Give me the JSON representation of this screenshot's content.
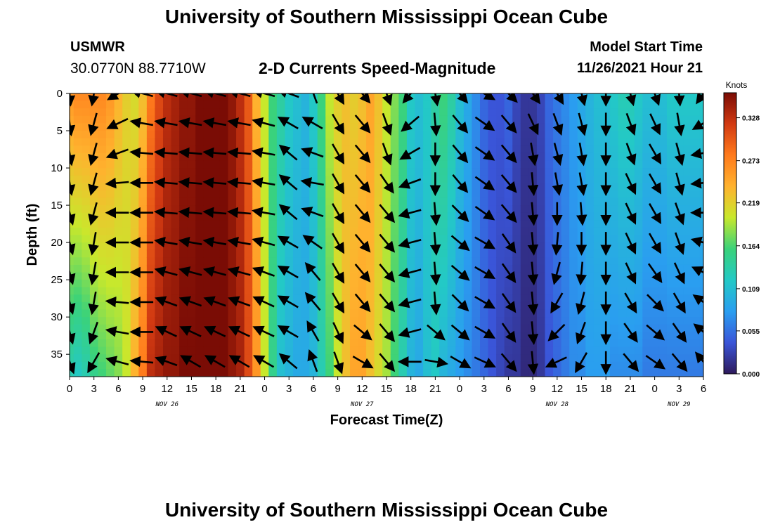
{
  "header": {
    "title": "University of Southern Mississippi Ocean Cube",
    "station_id": "USMWR",
    "coordinates": "30.0770N  88.7710W",
    "plot_title": "2-D Currents Speed-Magnitude",
    "model_start_label": "Model Start Time",
    "model_start_value": "11/26/2021 Hour 21"
  },
  "footer": {
    "title": "University of Southern Mississippi Ocean Cube"
  },
  "colors": {
    "colormap": [
      "#2e1a5c",
      "#3a55d8",
      "#2a9ef0",
      "#23c9c6",
      "#3ad27a",
      "#c8e82c",
      "#ffb22e",
      "#ff7a1c",
      "#d23a12",
      "#7a0c05"
    ],
    "arrow": "#000000"
  },
  "chart_data": {
    "type": "heatmap",
    "title": "2-D Currents Speed-Magnitude",
    "xlabel": "Forecast Time(Z)",
    "ylabel": "Depth (ft)",
    "xlim": [
      0,
      78
    ],
    "ylim": [
      0,
      38
    ],
    "y_ticks": [
      0,
      5,
      10,
      15,
      20,
      25,
      30,
      35
    ],
    "x_tick_hours": [
      0,
      3,
      6,
      9,
      12,
      15,
      18,
      21,
      24,
      27,
      30,
      33,
      36,
      39,
      42,
      45,
      48,
      51,
      54,
      57,
      60,
      63,
      66,
      69,
      72,
      75,
      78
    ],
    "x_tick_labels": [
      "0",
      "3",
      "6",
      "9",
      "12",
      "15",
      "18",
      "21",
      "0",
      "3",
      "6",
      "9",
      "12",
      "15",
      "18",
      "21",
      "0",
      "3",
      "6",
      "9",
      "12",
      "15",
      "18",
      "21",
      "0",
      "3",
      "6"
    ],
    "date_labels": [
      {
        "hour": 12,
        "label": "NOV 26"
      },
      {
        "hour": 36,
        "label": "NOV 27"
      },
      {
        "hour": 60,
        "label": "NOV 28"
      },
      {
        "hour": 75,
        "label": "NOV 29"
      }
    ],
    "colorbar": {
      "label": "Knots",
      "min": 0.0,
      "max": 0.36,
      "ticks": [
        0.0,
        0.055,
        0.109,
        0.164,
        0.219,
        0.273,
        0.328
      ],
      "tick_labels": [
        "0.000",
        "0.055",
        "0.109",
        "0.164",
        "0.219",
        "0.273",
        "0.328"
      ]
    },
    "speed_profile": {
      "hours": [
        0,
        1,
        2,
        3,
        4,
        5,
        6,
        7,
        8,
        9,
        10,
        11,
        12,
        13,
        14,
        15,
        16,
        17,
        18,
        19,
        20,
        21,
        22,
        23,
        24,
        25,
        26,
        27,
        28,
        29,
        30,
        31,
        32,
        33,
        34,
        35,
        36,
        37,
        38,
        39,
        40,
        41,
        42,
        43,
        44,
        45,
        46,
        47,
        48,
        49,
        50,
        51,
        52,
        53,
        54,
        55,
        56,
        57,
        58,
        59,
        60,
        61,
        62,
        63,
        64,
        65,
        66,
        67,
        68,
        69,
        70,
        71,
        72,
        73,
        74,
        75,
        76,
        77,
        78
      ],
      "surface": [
        0.26,
        0.27,
        0.27,
        0.27,
        0.27,
        0.26,
        0.24,
        0.22,
        0.21,
        0.23,
        0.28,
        0.31,
        0.33,
        0.34,
        0.35,
        0.35,
        0.36,
        0.36,
        0.36,
        0.36,
        0.35,
        0.33,
        0.3,
        0.24,
        0.2,
        0.16,
        0.14,
        0.12,
        0.11,
        0.1,
        0.12,
        0.16,
        0.2,
        0.22,
        0.23,
        0.22,
        0.23,
        0.25,
        0.23,
        0.2,
        0.18,
        0.16,
        0.12,
        0.11,
        0.12,
        0.14,
        0.16,
        0.14,
        0.11,
        0.09,
        0.07,
        0.05,
        0.04,
        0.04,
        0.05,
        0.03,
        0.02,
        0.02,
        0.03,
        0.05,
        0.06,
        0.07,
        0.08,
        0.09,
        0.1,
        0.11,
        0.11,
        0.12,
        0.13,
        0.13,
        0.12,
        0.11,
        0.11,
        0.11,
        0.12,
        0.12,
        0.12,
        0.12,
        0.12
      ],
      "bottom": [
        0.13,
        0.12,
        0.13,
        0.15,
        0.16,
        0.17,
        0.18,
        0.2,
        0.24,
        0.28,
        0.33,
        0.34,
        0.35,
        0.35,
        0.36,
        0.36,
        0.36,
        0.36,
        0.36,
        0.36,
        0.35,
        0.34,
        0.31,
        0.26,
        0.2,
        0.15,
        0.11,
        0.1,
        0.09,
        0.09,
        0.1,
        0.13,
        0.16,
        0.2,
        0.23,
        0.25,
        0.25,
        0.23,
        0.21,
        0.19,
        0.16,
        0.13,
        0.1,
        0.09,
        0.11,
        0.12,
        0.1,
        0.09,
        0.08,
        0.07,
        0.06,
        0.05,
        0.04,
        0.03,
        0.02,
        0.02,
        0.01,
        0.01,
        0.02,
        0.04,
        0.05,
        0.06,
        0.07,
        0.07,
        0.08,
        0.08,
        0.08,
        0.07,
        0.07,
        0.07,
        0.07,
        0.06,
        0.06,
        0.06,
        0.06,
        0.06,
        0.06,
        0.06,
        0.06
      ]
    },
    "vector_field": {
      "hours": [
        0,
        3,
        6,
        9,
        12,
        15,
        18,
        21,
        24,
        27,
        30,
        33,
        36,
        39,
        42,
        45,
        48,
        51,
        54,
        57,
        60,
        63,
        66,
        69,
        72,
        75,
        78
      ],
      "depths": [
        0,
        4,
        8,
        12,
        16,
        20,
        24,
        28,
        32,
        36
      ],
      "direction_deg": [
        [
          175,
          190,
          240,
          285,
          285,
          285,
          285,
          285,
          285,
          290,
          340,
          150,
          140,
          160,
          220,
          170,
          140,
          120,
          135,
          145,
          150,
          165,
          180,
          165,
          160,
          175,
          215
        ],
        [
          172,
          195,
          245,
          280,
          280,
          280,
          280,
          280,
          285,
          300,
          300,
          150,
          140,
          160,
          230,
          175,
          140,
          125,
          140,
          155,
          160,
          165,
          180,
          160,
          155,
          170,
          240
        ],
        [
          170,
          195,
          250,
          275,
          275,
          275,
          275,
          275,
          280,
          310,
          290,
          150,
          140,
          160,
          240,
          180,
          140,
          125,
          140,
          170,
          165,
          170,
          180,
          160,
          150,
          165,
          260
        ],
        [
          170,
          195,
          265,
          270,
          275,
          275,
          275,
          275,
          280,
          310,
          280,
          150,
          140,
          145,
          250,
          180,
          140,
          125,
          140,
          175,
          170,
          170,
          180,
          155,
          150,
          165,
          265
        ],
        [
          165,
          195,
          270,
          270,
          275,
          275,
          275,
          275,
          280,
          310,
          290,
          150,
          140,
          140,
          255,
          175,
          135,
          125,
          140,
          175,
          180,
          175,
          180,
          155,
          150,
          160,
          270
        ],
        [
          165,
          190,
          270,
          270,
          280,
          280,
          280,
          280,
          285,
          300,
          305,
          150,
          140,
          140,
          255,
          175,
          130,
          120,
          145,
          175,
          185,
          180,
          180,
          155,
          150,
          160,
          285
        ],
        [
          165,
          190,
          270,
          270,
          285,
          285,
          285,
          285,
          290,
          300,
          320,
          150,
          140,
          140,
          255,
          175,
          130,
          120,
          145,
          175,
          195,
          185,
          180,
          155,
          145,
          155,
          295
        ],
        [
          165,
          190,
          275,
          270,
          290,
          290,
          290,
          290,
          295,
          300,
          320,
          150,
          140,
          140,
          255,
          175,
          135,
          120,
          145,
          175,
          210,
          195,
          180,
          150,
          135,
          150,
          305
        ],
        [
          165,
          200,
          280,
          270,
          295,
          295,
          295,
          295,
          295,
          300,
          330,
          155,
          130,
          140,
          255,
          130,
          130,
          120,
          145,
          175,
          225,
          200,
          180,
          145,
          130,
          145,
          310
        ],
        [
          160,
          210,
          285,
          275,
          290,
          300,
          300,
          300,
          300,
          310,
          340,
          160,
          120,
          140,
          270,
          100,
          120,
          115,
          140,
          175,
          245,
          210,
          180,
          140,
          125,
          140,
          320
        ]
      ]
    }
  }
}
